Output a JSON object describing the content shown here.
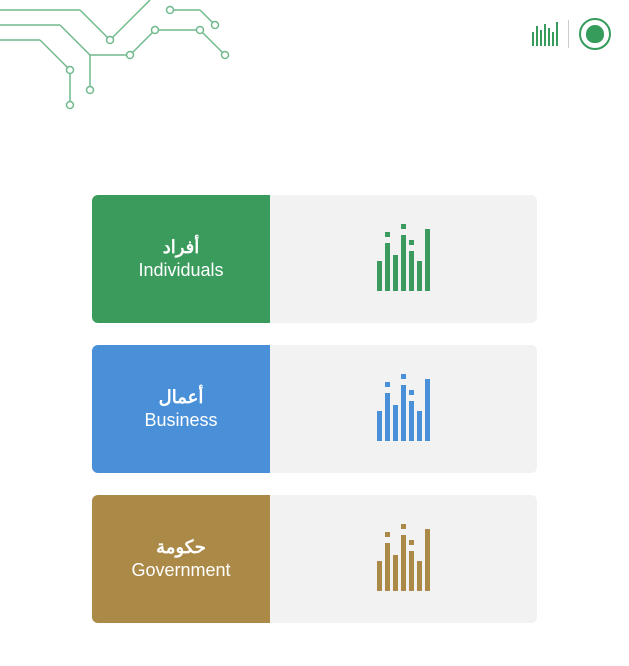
{
  "header": {
    "emblem_color": "#359c5c",
    "mini_logo_color": "#359c5c",
    "divider_color": "#cccccc"
  },
  "circuit": {
    "line_color": "#359c5c",
    "node_fill": "#ffffff"
  },
  "cards": [
    {
      "id": "individuals",
      "label_ar": "أفراد",
      "label_en": "Individuals",
      "panel_color": "#3a9b5c",
      "logo_color": "#3a9b5c"
    },
    {
      "id": "business",
      "label_ar": "أعمال",
      "label_en": "Business",
      "panel_color": "#4a90d9",
      "logo_color": "#4a90d9"
    },
    {
      "id": "government",
      "label_ar": "حكومة",
      "label_en": "Government",
      "panel_color": "#ab8a47",
      "logo_color": "#ab8a47"
    }
  ],
  "logo_panel_bg": "#f2f2f2"
}
